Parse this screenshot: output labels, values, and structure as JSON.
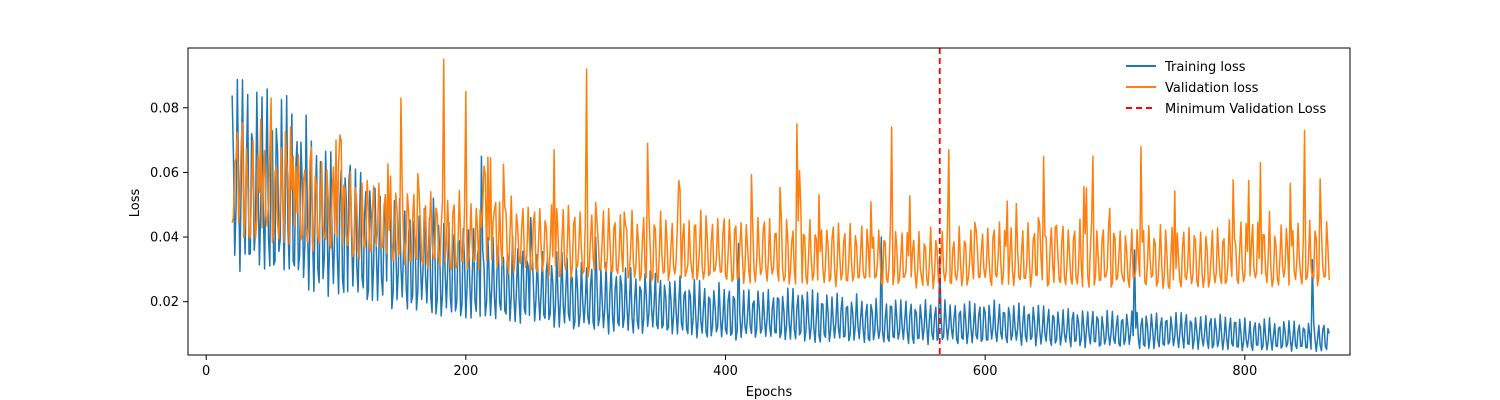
{
  "chart_data": {
    "type": "line",
    "title": "",
    "xlabel": "Epochs",
    "ylabel": "Loss",
    "xlim": [
      -14,
      881
    ],
    "ylim": [
      0.0035,
      0.0985
    ],
    "xticks": [
      0,
      200,
      400,
      600,
      800
    ],
    "yticks": [
      0.02,
      0.04,
      0.06,
      0.08
    ],
    "xtick_labels": [
      "0",
      "200",
      "400",
      "600",
      "800"
    ],
    "ytick_labels": [
      "0.02",
      "0.04",
      "0.06",
      "0.08"
    ],
    "grid": false,
    "legend_position": "top-right",
    "x_start": 20,
    "x_end": 865,
    "series": [
      {
        "name": "Training loss",
        "color": "#1f77b4",
        "trend_x": [
          20,
          60,
          100,
          150,
          200,
          250,
          300,
          350,
          400,
          450,
          500,
          565,
          600,
          650,
          700,
          750,
          800,
          865
        ],
        "trend_y": [
          0.053,
          0.049,
          0.039,
          0.031,
          0.026,
          0.022,
          0.019,
          0.017,
          0.015,
          0.014,
          0.013,
          0.012,
          0.012,
          0.011,
          0.01,
          0.01,
          0.009,
          0.008
        ],
        "spikes": [
          [
            110,
            0.058
          ],
          [
            140,
            0.055
          ],
          [
            175,
            0.052
          ],
          [
            212,
            0.065
          ],
          [
            250,
            0.046
          ],
          [
            300,
            0.04
          ],
          [
            410,
            0.038
          ],
          [
            520,
            0.04
          ],
          [
            565,
            0.034
          ],
          [
            715,
            0.036
          ],
          [
            852,
            0.033
          ]
        ]
      },
      {
        "name": "Validation loss",
        "color": "#ff7f0e",
        "trend_x": [
          20,
          60,
          100,
          150,
          200,
          250,
          300,
          350,
          400,
          450,
          500,
          565,
          600,
          650,
          700,
          750,
          800,
          865
        ],
        "trend_y": [
          0.052,
          0.049,
          0.045,
          0.041,
          0.038,
          0.037,
          0.035,
          0.034,
          0.034,
          0.033,
          0.032,
          0.031,
          0.032,
          0.032,
          0.032,
          0.031,
          0.032,
          0.032
        ],
        "spikes": [
          [
            50,
            0.083
          ],
          [
            65,
            0.074
          ],
          [
            100,
            0.07
          ],
          [
            150,
            0.083
          ],
          [
            183,
            0.095
          ],
          [
            200,
            0.085
          ],
          [
            268,
            0.067
          ],
          [
            293,
            0.092
          ],
          [
            340,
            0.069
          ],
          [
            455,
            0.075
          ],
          [
            528,
            0.074
          ],
          [
            572,
            0.067
          ],
          [
            645,
            0.065
          ],
          [
            683,
            0.065
          ],
          [
            720,
            0.068
          ],
          [
            812,
            0.063
          ],
          [
            846,
            0.073
          ],
          [
            858,
            0.058
          ]
        ]
      }
    ],
    "vlines": [
      {
        "name": "Minimum Validation Loss",
        "x": 565,
        "color": "#ff0000",
        "style": "dashed"
      }
    ]
  }
}
